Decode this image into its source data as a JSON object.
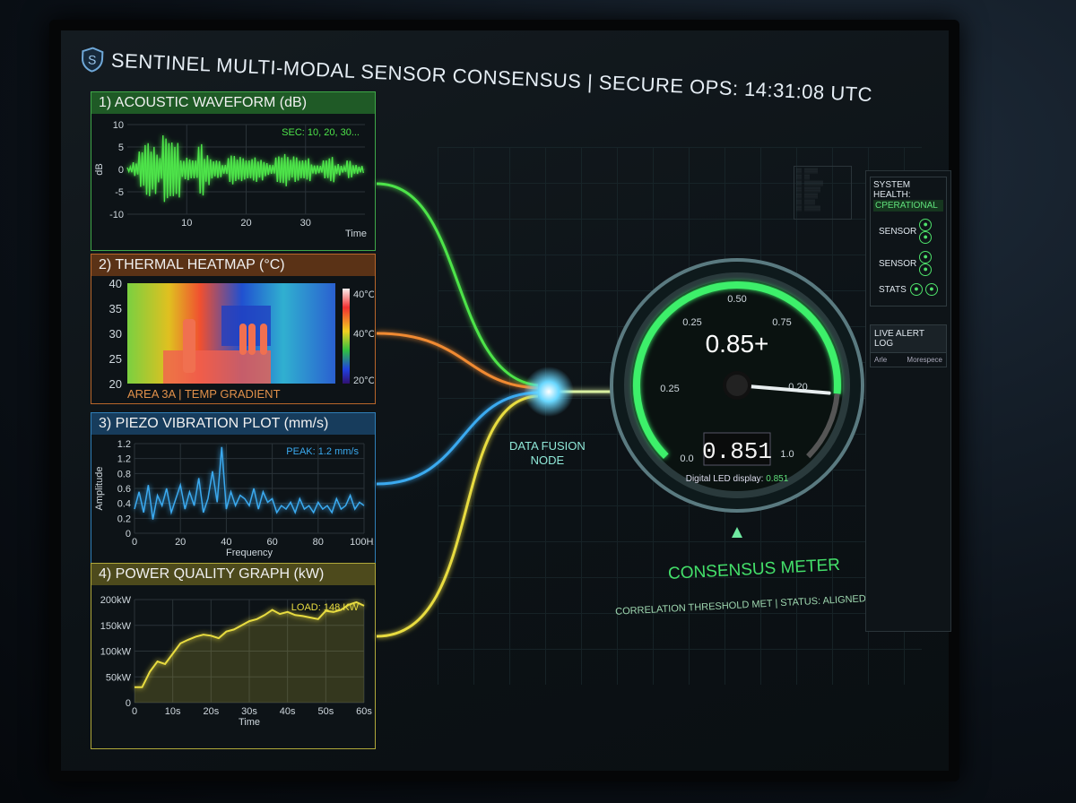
{
  "header": {
    "title": "SENTINEL MULTI-MODAL SENSOR CONSENSUS | SECURE OPS: 14:31:08 UTC",
    "logo_letter": "S"
  },
  "colors": {
    "acoustic": "#4ee44a",
    "thermal": "#e07a2a",
    "piezo": "#3aaaf0",
    "power": "#e8dc40",
    "accent": "#44e06a"
  },
  "panels": {
    "acoustic": {
      "title": "1) ACOUSTIC WAVEFORM (dB)",
      "annotation": "SEC: 10, 20, 30..."
    },
    "thermal": {
      "title": "2) THERMAL HEATMAP (°C)",
      "caption": "AREA 3A | TEMP GRADIENT"
    },
    "piezo": {
      "title": "3) PIEZO VIBRATION PLOT (mm/s)",
      "annotation": "PEAK: 1.2 mm/s"
    },
    "power": {
      "title": "4) POWER QUALITY GRAPH (kW)",
      "annotation": "LOAD: 148 KW"
    }
  },
  "chart_data": [
    {
      "type": "area",
      "name": "acoustic",
      "xlabel": "Time",
      "ylabel": "dB",
      "xticks": [
        "10",
        "20",
        "30"
      ],
      "xlim": [
        0,
        40
      ],
      "yticks": [
        "10",
        "5",
        "0",
        "-5",
        "-10"
      ],
      "ylim": [
        -10,
        10
      ],
      "grid": true,
      "envelope": [
        1,
        2,
        4,
        6,
        7,
        5,
        8,
        6,
        7,
        4,
        3,
        2,
        6,
        5,
        3,
        2,
        1,
        4,
        5,
        3,
        2,
        3,
        4,
        2,
        1,
        3,
        5,
        4,
        3,
        2,
        3,
        2,
        1,
        2,
        3,
        2,
        1,
        2,
        1,
        1
      ]
    },
    {
      "type": "heatmap",
      "name": "thermal",
      "yticks": [
        "40",
        "35",
        "30",
        "25",
        "20"
      ],
      "ylim": [
        20,
        40
      ],
      "colorbar_labels": [
        "40°C",
        "40°C",
        "20°C"
      ]
    },
    {
      "type": "line",
      "name": "piezo",
      "xlabel": "Frequency",
      "ylabel": "Amplitude",
      "xticks": [
        "0",
        "20",
        "40",
        "60",
        "80",
        "100Hz"
      ],
      "xlim": [
        0,
        100
      ],
      "yticks": [
        "1.2",
        "1.2",
        "0.8",
        "0.6",
        "0.4",
        "0.2",
        "0"
      ],
      "ylim": [
        0,
        1.3
      ],
      "grid": true,
      "values": [
        0.35,
        0.6,
        0.3,
        0.7,
        0.2,
        0.55,
        0.4,
        0.65,
        0.3,
        0.5,
        0.7,
        0.35,
        0.6,
        0.4,
        0.8,
        0.3,
        0.5,
        0.9,
        0.45,
        1.25,
        0.35,
        0.6,
        0.4,
        0.55,
        0.5,
        0.4,
        0.65,
        0.35,
        0.6,
        0.45,
        0.5,
        0.3,
        0.4,
        0.35,
        0.45,
        0.3,
        0.5,
        0.35,
        0.4,
        0.3,
        0.45,
        0.35,
        0.4,
        0.3,
        0.5,
        0.35,
        0.4,
        0.55,
        0.35,
        0.45,
        0.4
      ]
    },
    {
      "type": "area",
      "name": "power",
      "xlabel": "Time",
      "xticks": [
        "0",
        "10s",
        "20s",
        "30s",
        "40s",
        "50s",
        "60s"
      ],
      "xlim": [
        0,
        60
      ],
      "yticks": [
        "200kW",
        "150kW",
        "100kW",
        "50kW",
        "0"
      ],
      "ylim": [
        0,
        200
      ],
      "grid": true,
      "x": [
        0,
        2,
        4,
        6,
        8,
        10,
        12,
        14,
        16,
        18,
        20,
        22,
        24,
        26,
        28,
        30,
        32,
        34,
        36,
        38,
        40,
        42,
        44,
        46,
        48,
        50,
        52,
        54,
        56,
        58,
        60
      ],
      "values": [
        30,
        30,
        60,
        80,
        75,
        95,
        115,
        122,
        128,
        132,
        130,
        125,
        138,
        142,
        150,
        158,
        162,
        170,
        180,
        172,
        176,
        170,
        168,
        165,
        162,
        178,
        176,
        180,
        190,
        195,
        188
      ]
    }
  ],
  "fusion": {
    "label_line1": "DATA FUSION",
    "label_line2": "NODE"
  },
  "gauge": {
    "value": 0.851,
    "headline": "0.85+",
    "led": "0.851",
    "led_caption_prefix": "Digital LED display:",
    "led_caption_value": "0.851",
    "tick_labels": [
      "0.0",
      "0.25",
      "0.25",
      "0.50",
      "0.75",
      "0.20",
      "1.0"
    ]
  },
  "consensus": {
    "title": "CONSENSUS METER",
    "status": "CORRELATION THRESHOLD MET | STATUS: ALIGNED | OPTIMAL"
  },
  "right_panel": {
    "health_label": "SYSTEM HEALTH:",
    "health_value": "CPERATIONAL",
    "rows": [
      "SENSOR",
      "SENSOR",
      "STATS"
    ],
    "log_title": "LIVE ALERT LOG",
    "log_cols": [
      "Arle",
      "Morespece"
    ]
  }
}
